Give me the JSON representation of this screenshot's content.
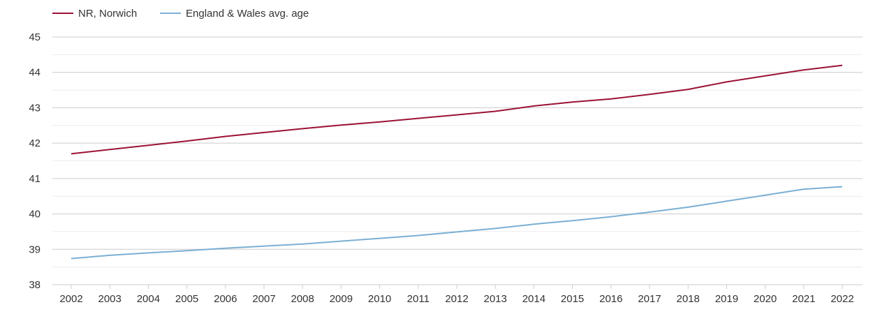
{
  "chart_data": {
    "type": "line",
    "title": "",
    "xlabel": "",
    "ylabel": "",
    "x": [
      "2002",
      "2003",
      "2004",
      "2005",
      "2006",
      "2007",
      "2008",
      "2009",
      "2010",
      "2011",
      "2012",
      "2013",
      "2014",
      "2015",
      "2016",
      "2017",
      "2018",
      "2019",
      "2020",
      "2021",
      "2022"
    ],
    "ylim": [
      38,
      45
    ],
    "yticks": [
      38,
      39,
      40,
      41,
      42,
      43,
      44,
      45
    ],
    "grid": true,
    "legend_position": "top-left",
    "series": [
      {
        "name": "NR, Norwich",
        "color": "#9b1236",
        "values": [
          41.7,
          41.82,
          41.94,
          42.06,
          42.19,
          42.3,
          42.41,
          42.51,
          42.6,
          42.7,
          42.8,
          42.9,
          43.05,
          43.16,
          43.25,
          43.38,
          43.52,
          43.73,
          43.9,
          44.07,
          44.2
        ]
      },
      {
        "name": "England & Wales avg. age",
        "color": "#7bafd4",
        "values": [
          38.74,
          38.83,
          38.9,
          38.96,
          39.03,
          39.09,
          39.15,
          39.23,
          39.31,
          39.39,
          39.49,
          39.59,
          39.71,
          39.81,
          39.92,
          40.05,
          40.19,
          40.36,
          40.53,
          40.7,
          40.77
        ]
      }
    ]
  }
}
